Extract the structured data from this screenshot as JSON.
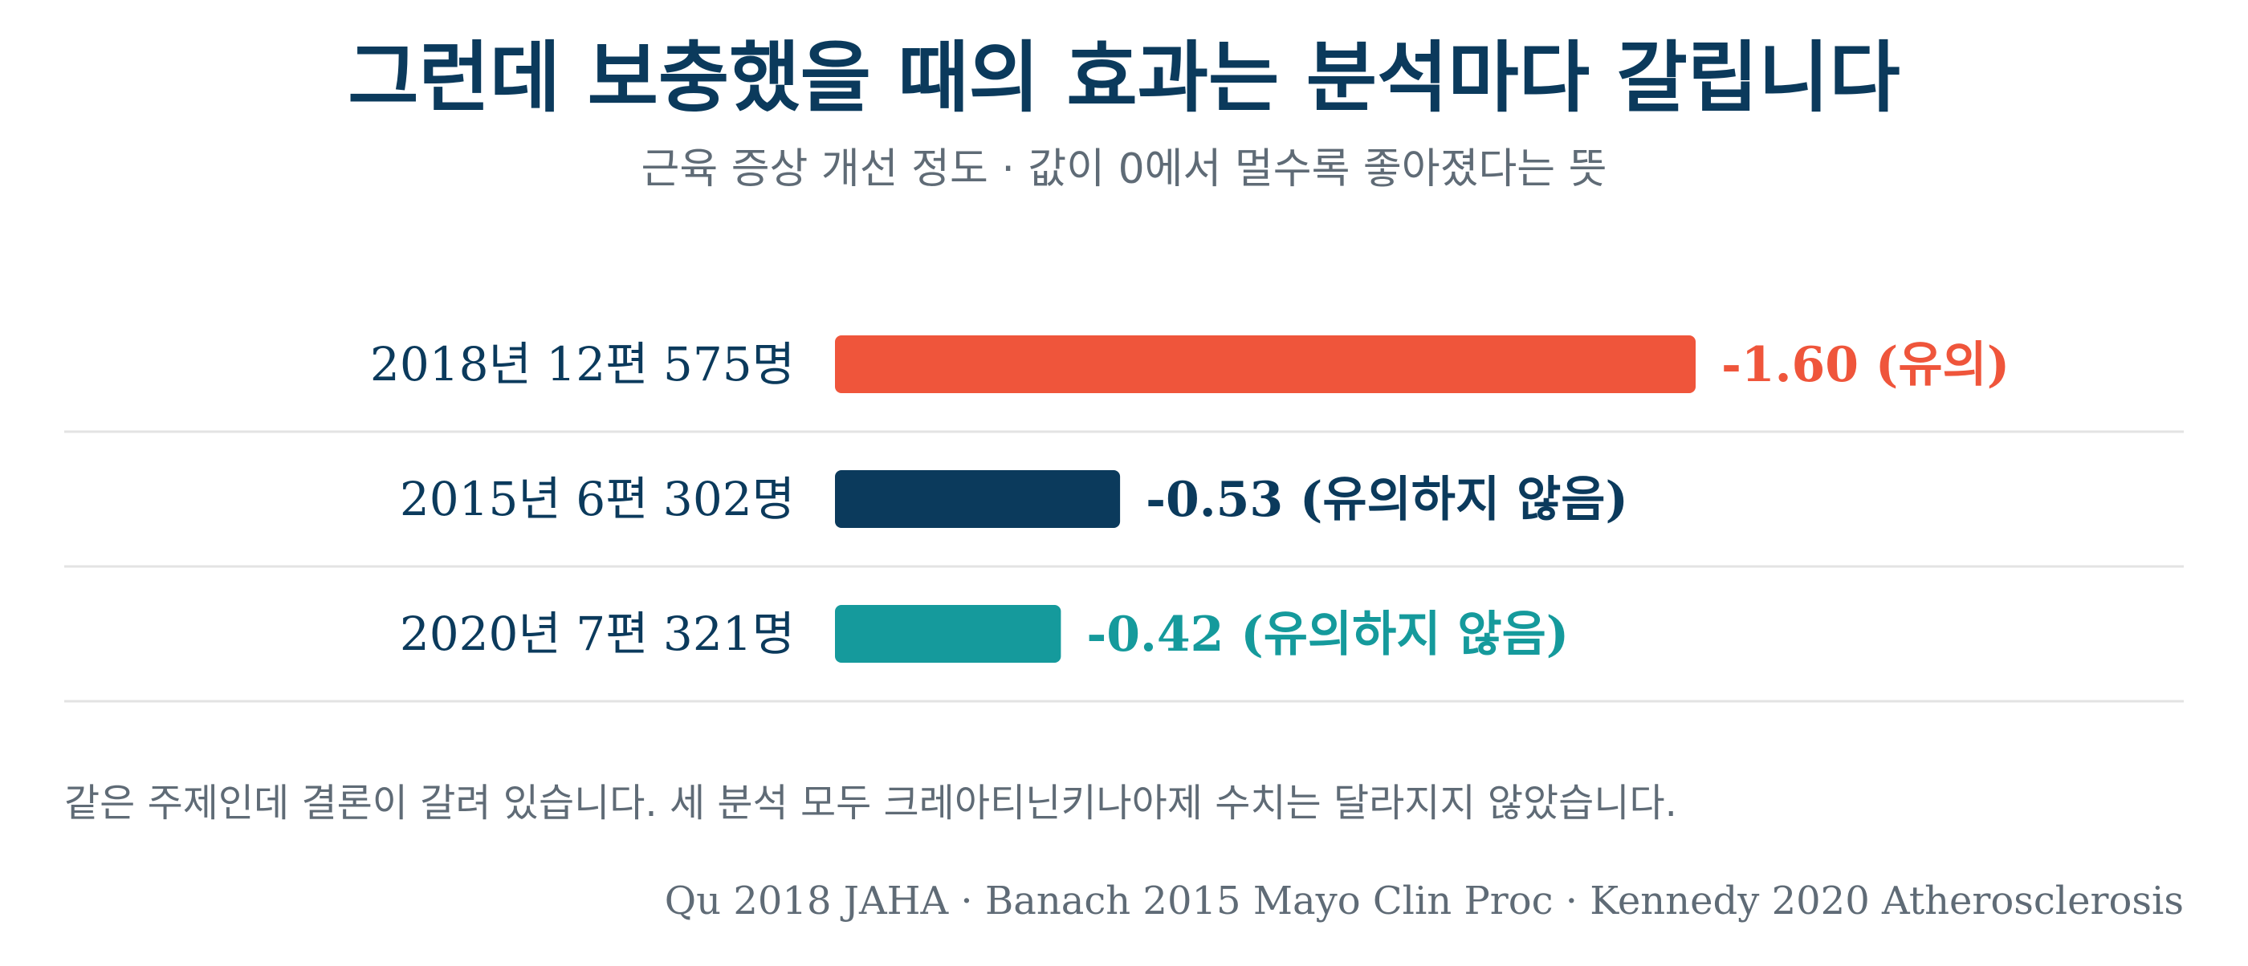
{
  "chart_data": {
    "type": "bar",
    "orientation": "horizontal",
    "title": "그런데 보충했을 때의 효과는 분석마다 갈립니다",
    "subtitle": "근육 증상 개선 정도 · 값이 0에서 멀수록 좋아졌다는 뜻",
    "categories": [
      "2018년 12편 575명",
      "2015년 6편 302명",
      "2020년 7편 321명"
    ],
    "values": [
      -1.6,
      -0.53,
      -0.42
    ],
    "value_labels": [
      "-1.60 (유의)",
      "-0.53 (유의하지 않음)",
      "-0.42 (유의하지 않음)"
    ],
    "colors": [
      "#ef553b",
      "#0b3a5c",
      "#159a9c"
    ],
    "grid": false,
    "legend": "none",
    "note": "같은 주제인데 결론이 갈려 있습니다. 세 분석 모두 크레아티닌키나아제 수치는 달라지지 않았습니다.",
    "source": "Qu 2018 JAHA · Banach 2015 Mayo Clin Proc · Kennedy 2020 Atherosclerosis"
  }
}
